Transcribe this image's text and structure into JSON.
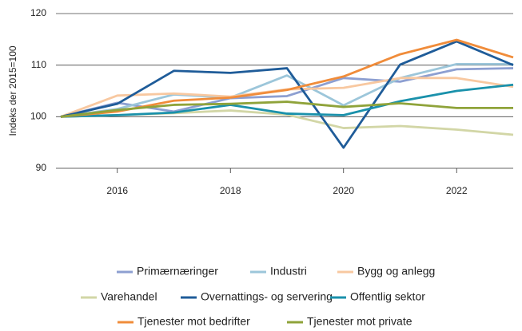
{
  "chart_data": {
    "type": "line",
    "y_label": "Indeks der 2015=100",
    "x": [
      2015,
      2016,
      2017,
      2018,
      2019,
      2020,
      2021,
      2022,
      2023
    ],
    "xlim": [
      2015,
      2023
    ],
    "xticks": [
      2016,
      2018,
      2020,
      2022
    ],
    "ylim": [
      90,
      120
    ],
    "yticks": [
      90,
      100,
      110,
      120
    ],
    "grid": true,
    "series": [
      {
        "name": "Primærnæringer",
        "color": "#8d9fd1",
        "values": [
          100,
          102.7,
          101,
          103.6,
          104,
          107.5,
          106.8,
          109.2,
          109.4
        ]
      },
      {
        "name": "Industri",
        "color": "#9cc6da",
        "values": [
          100,
          101.5,
          104.3,
          103.7,
          108,
          102.2,
          107.5,
          110.2,
          110.2
        ]
      },
      {
        "name": "Bygg og anlegg",
        "color": "#f8c8a0",
        "values": [
          100,
          104.1,
          104.5,
          103.9,
          105.3,
          105.6,
          107.5,
          107.5,
          105.8
        ]
      },
      {
        "name": "Varehandel",
        "color": "#d2d6a6",
        "values": [
          100,
          100.3,
          100.7,
          101.2,
          100.4,
          97.8,
          98.2,
          97.5,
          96.5
        ]
      },
      {
        "name": "Overnattings- og servering",
        "color": "#1f5c99",
        "values": [
          100,
          102.5,
          108.9,
          108.5,
          109.4,
          94,
          110.1,
          114.6,
          110
        ]
      },
      {
        "name": "Offentlig sektor",
        "color": "#1a91ab",
        "values": [
          100,
          100.3,
          100.8,
          102.3,
          100.6,
          100.3,
          103,
          105,
          106.2
        ]
      },
      {
        "name": "Tjenester mot bedrifter",
        "color": "#f08c3a",
        "values": [
          100,
          101,
          103.1,
          103.7,
          105.2,
          107.8,
          112.1,
          114.9,
          111.5
        ]
      },
      {
        "name": "Tjenester mot private",
        "color": "#8fa33a",
        "values": [
          100,
          101.3,
          102.3,
          102.5,
          102.9,
          101.9,
          102.6,
          101.7,
          101.7
        ]
      }
    ]
  }
}
